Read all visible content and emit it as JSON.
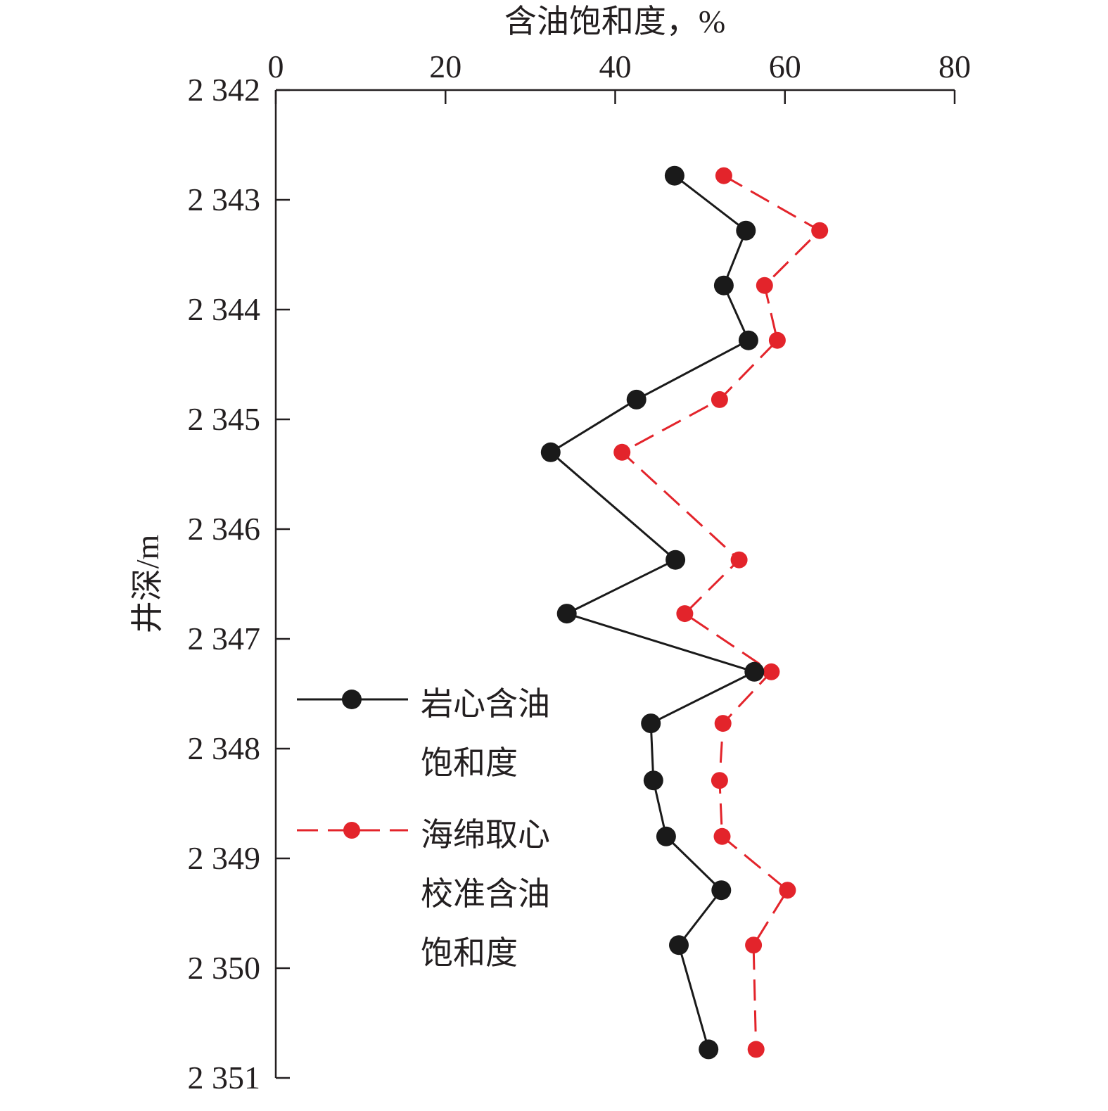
{
  "chart_data": {
    "type": "line",
    "xlabel": "含油饱和度，%",
    "ylabel": "井深/m",
    "xlim": [
      0,
      80
    ],
    "ylim": [
      2342,
      2351
    ],
    "y_inverted": true,
    "x_axis_position": "top",
    "xticks": [
      0,
      20,
      40,
      60,
      80
    ],
    "xtick_labels": [
      "0",
      "20",
      "40",
      "60",
      "80"
    ],
    "yticks": [
      2342,
      2343,
      2344,
      2345,
      2346,
      2347,
      2348,
      2349,
      2350,
      2351
    ],
    "ytick_labels": [
      "2 342",
      "2 343",
      "2 344",
      "2 345",
      "2 346",
      "2 347",
      "2 348",
      "2 349",
      "2 350",
      "2 351"
    ],
    "grid": false,
    "legend_position": "lower-left",
    "series": [
      {
        "name": "岩心含油饱和度",
        "legend_lines": [
          "岩心含油",
          "饱和度"
        ],
        "color": "#1a1a1a",
        "line_style": "solid",
        "points": [
          {
            "x": 47.0,
            "y": 2342.78
          },
          {
            "x": 55.4,
            "y": 2343.28
          },
          {
            "x": 52.8,
            "y": 2343.78
          },
          {
            "x": 55.7,
            "y": 2344.28
          },
          {
            "x": 42.5,
            "y": 2344.82
          },
          {
            "x": 32.4,
            "y": 2345.3
          },
          {
            "x": 47.1,
            "y": 2346.28
          },
          {
            "x": 34.3,
            "y": 2346.77
          },
          {
            "x": 56.4,
            "y": 2347.3
          },
          {
            "x": 44.2,
            "y": 2347.77
          },
          {
            "x": 44.5,
            "y": 2348.29
          },
          {
            "x": 46.0,
            "y": 2348.8
          },
          {
            "x": 52.5,
            "y": 2349.29
          },
          {
            "x": 47.5,
            "y": 2349.79
          },
          {
            "x": 51.0,
            "y": 2350.74
          }
        ]
      },
      {
        "name": "海绵取心校准含油饱和度",
        "legend_lines": [
          "海绵取心",
          "校准含油",
          "饱和度"
        ],
        "color": "#e3242b",
        "line_style": "dashed",
        "points": [
          {
            "x": 52.8,
            "y": 2342.78
          },
          {
            "x": 64.1,
            "y": 2343.28
          },
          {
            "x": 57.6,
            "y": 2343.78
          },
          {
            "x": 59.1,
            "y": 2344.28
          },
          {
            "x": 52.3,
            "y": 2344.82
          },
          {
            "x": 40.8,
            "y": 2345.3
          },
          {
            "x": 54.6,
            "y": 2346.28
          },
          {
            "x": 48.2,
            "y": 2346.77
          },
          {
            "x": 58.4,
            "y": 2347.3
          },
          {
            "x": 52.7,
            "y": 2347.77
          },
          {
            "x": 52.3,
            "y": 2348.29
          },
          {
            "x": 52.6,
            "y": 2348.8
          },
          {
            "x": 60.3,
            "y": 2349.29
          },
          {
            "x": 56.3,
            "y": 2349.79
          },
          {
            "x": 56.6,
            "y": 2350.74
          }
        ]
      }
    ]
  }
}
